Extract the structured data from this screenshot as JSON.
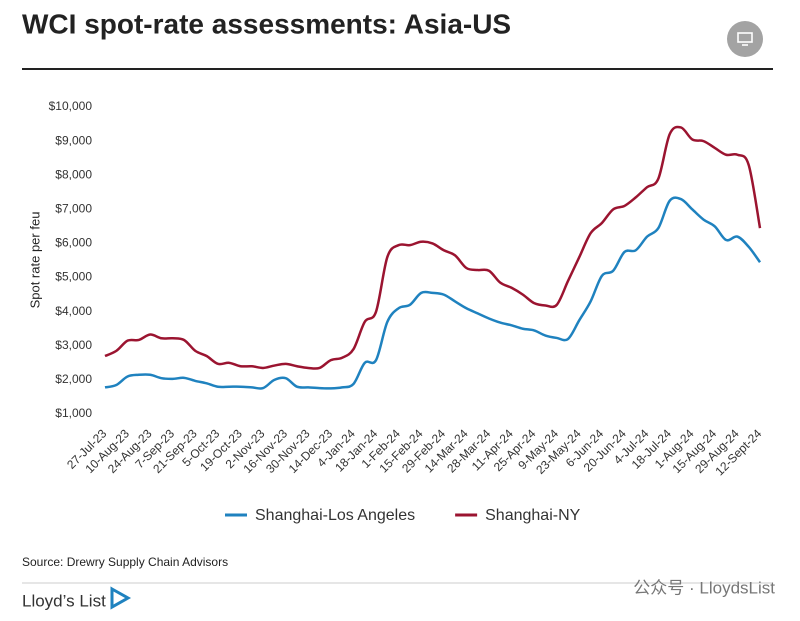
{
  "chart_data": {
    "type": "line",
    "title": "WCI spot-rate assessments: Asia-US",
    "y_label": "Spot rate per feu",
    "source": "Source: Drewry Supply Chain Advisors",
    "brand": "Lloyd’s List",
    "watermark": "公众号 · LloydsList",
    "legend": "bottom",
    "categories": [
      "27-Jul-23",
      null,
      "10-Aug-23",
      null,
      "24-Aug-23",
      null,
      "7-Sep-23",
      null,
      "21-Sep-23",
      null,
      "5-Oct-23",
      null,
      "19-Oct-23",
      null,
      "2-Nov-23",
      null,
      "16-Nov-23",
      null,
      "30-Nov-23",
      null,
      "14-Dec-23",
      null,
      "4-Jan-24",
      null,
      "18-Jan-24",
      null,
      "1-Feb-24",
      null,
      "15-Feb-24",
      null,
      "29-Feb-24",
      null,
      "14-Mar-24",
      null,
      "28-Mar-24",
      null,
      "11-Apr-24",
      null,
      "25-Apr-24",
      null,
      "9-May-24",
      null,
      "23-May-24",
      null,
      "6-Jun-24",
      null,
      "20-Jun-24",
      null,
      "4-Jul-24",
      null,
      "18-Jul-24",
      null,
      "1-Aug-24",
      null,
      "15-Aug-24",
      null,
      "29-Aug-24",
      null,
      "12-Sept-24"
    ],
    "series": [
      {
        "name": "Shanghai-Los Angeles",
        "color": "#1f82bf",
        "values": [
          1780,
          1850,
          2100,
          2150,
          2150,
          2050,
          2030,
          2060,
          1970,
          1900,
          1800,
          1800,
          1800,
          1780,
          1760,
          2000,
          2050,
          1800,
          1780,
          1760,
          1750,
          1780,
          1880,
          2500,
          2580,
          3700,
          4100,
          4200,
          4550,
          4550,
          4500,
          4300,
          4100,
          3950,
          3800,
          3680,
          3600,
          3500,
          3450,
          3300,
          3230,
          3200,
          3750,
          4300,
          5050,
          5200,
          5750,
          5800,
          6200,
          6450,
          7250,
          7300,
          7000,
          6700,
          6500,
          6100,
          6200,
          5900,
          5450
        ]
      },
      {
        "name": "Shanghai-NY",
        "color": "#9b1430",
        "values": [
          2700,
          2850,
          3150,
          3170,
          3330,
          3220,
          3220,
          3170,
          2850,
          2700,
          2470,
          2500,
          2400,
          2400,
          2350,
          2420,
          2470,
          2400,
          2350,
          2350,
          2580,
          2650,
          2900,
          3700,
          4000,
          5600,
          5950,
          5950,
          6050,
          6000,
          5800,
          5650,
          5280,
          5220,
          5200,
          4850,
          4700,
          4500,
          4250,
          4180,
          4200,
          4900,
          5600,
          6300,
          6600,
          7000,
          7100,
          7350,
          7650,
          7900,
          9200,
          9400,
          9050,
          9000,
          8800,
          8600,
          8600,
          8300,
          6450
        ]
      }
    ],
    "ylim": [
      1000,
      10000
    ],
    "yticks": [
      {
        "value": 1000,
        "label": "$1,000"
      },
      {
        "value": 2000,
        "label": "$2,000"
      },
      {
        "value": 3000,
        "label": "$3,000"
      },
      {
        "value": 4000,
        "label": "$4,000"
      },
      {
        "value": 5000,
        "label": "$5,000"
      },
      {
        "value": 6000,
        "label": "$6,000"
      },
      {
        "value": 7000,
        "label": "$7,000"
      },
      {
        "value": 8000,
        "label": "$8,000"
      },
      {
        "value": 9000,
        "label": "$9,000"
      },
      {
        "value": 10000,
        "label": "$10,000"
      }
    ],
    "grid": false
  }
}
